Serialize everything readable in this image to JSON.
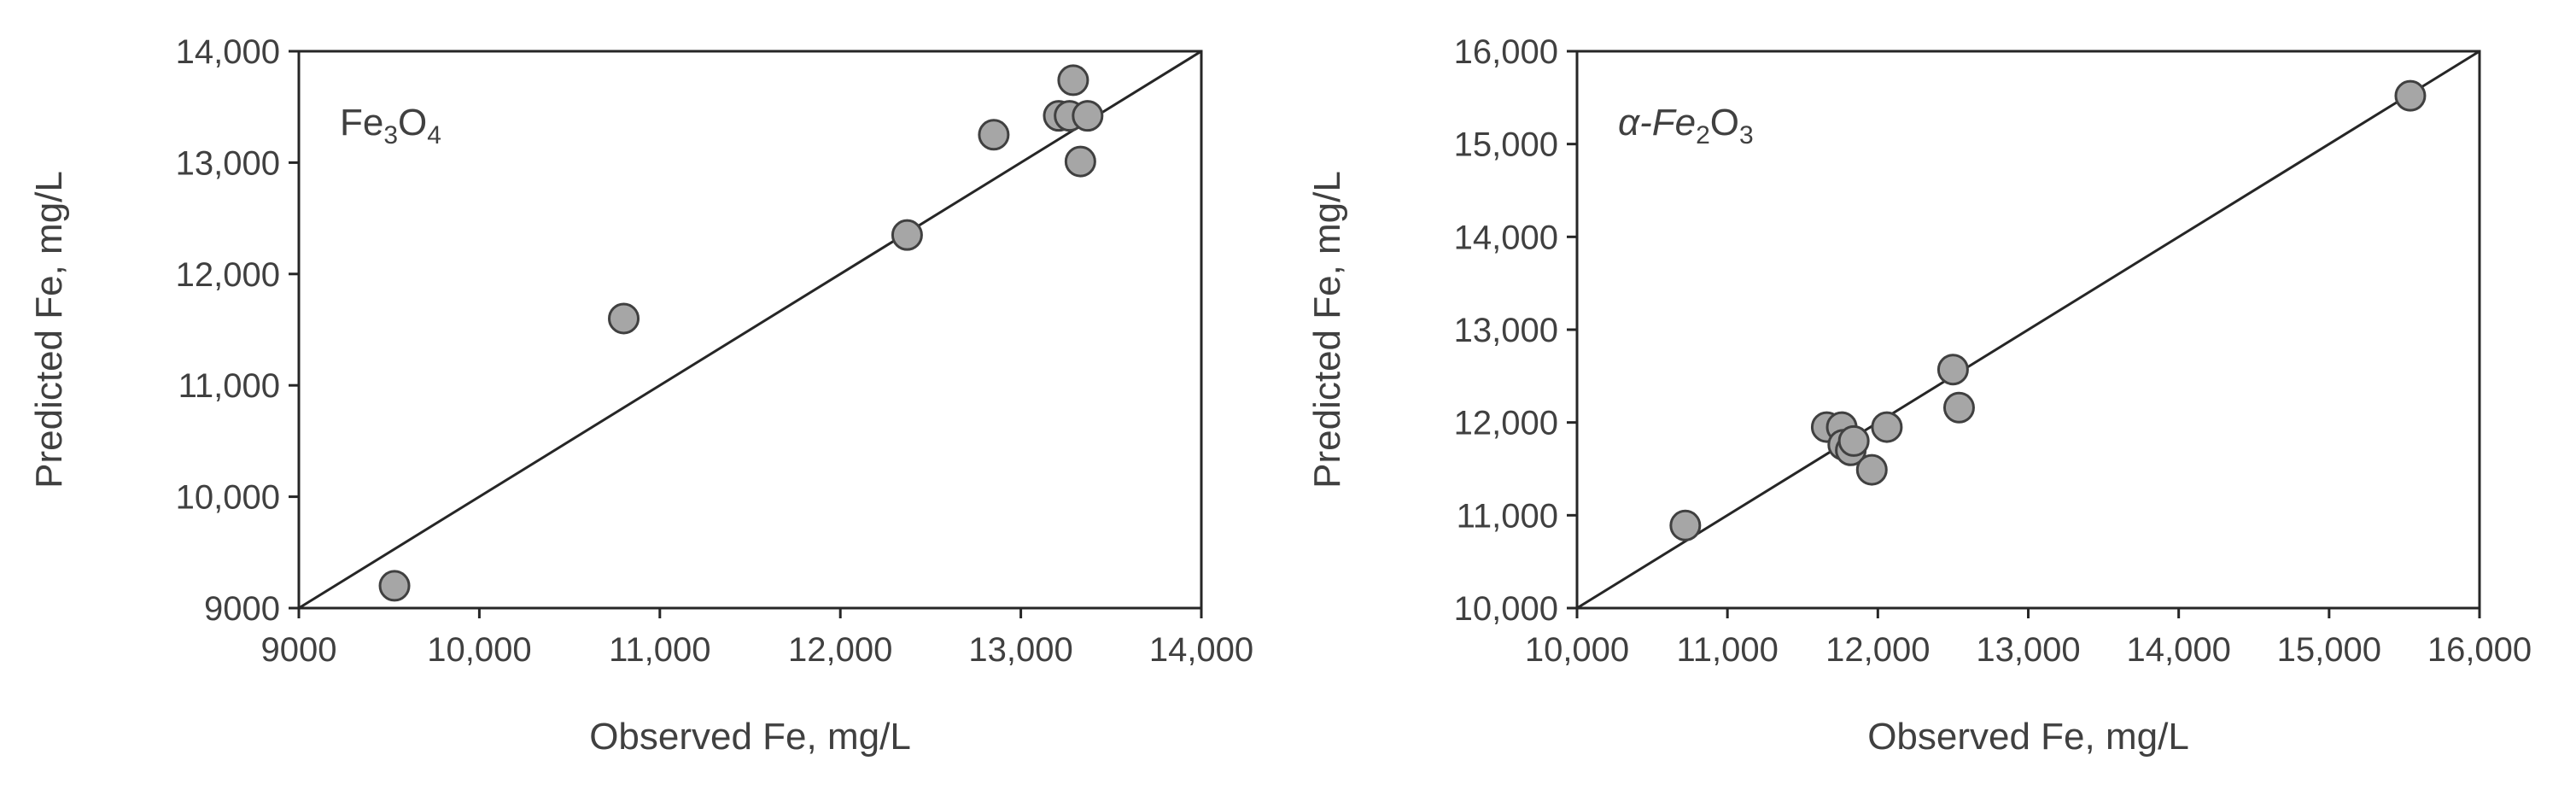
{
  "chart_data": [
    {
      "type": "scatter",
      "panel_label": {
        "prefix": "Fe",
        "sub1": "3",
        "mid": "O",
        "sub2": "4",
        "suffix": ""
      },
      "xlabel": "Observed Fe, mg/L",
      "ylabel": "Predicted Fe, mg/L",
      "xlim": [
        9000,
        14000
      ],
      "ylim": [
        9000,
        14000
      ],
      "xticks": [
        9000,
        10000,
        11000,
        12000,
        13000,
        14000
      ],
      "yticks": [
        9000,
        10000,
        11000,
        12000,
        13000,
        14000
      ],
      "xtick_labels": [
        "9000",
        "10,000",
        "11,000",
        "12,000",
        "13,000",
        "14,000"
      ],
      "ytick_labels": [
        "9000",
        "10,000",
        "11,000",
        "12,000",
        "13,000",
        "14,000"
      ],
      "reference_line": "1:1",
      "grid": false,
      "legend": false,
      "marker_color": "#a6a6a6",
      "marker_edge": "#404040",
      "points": [
        {
          "x": 9530,
          "y": 9200
        },
        {
          "x": 10800,
          "y": 11600
        },
        {
          "x": 12370,
          "y": 12350
        },
        {
          "x": 12850,
          "y": 13250
        },
        {
          "x": 13210,
          "y": 13420
        },
        {
          "x": 13270,
          "y": 13420
        },
        {
          "x": 13290,
          "y": 13740
        },
        {
          "x": 13370,
          "y": 13420
        },
        {
          "x": 13330,
          "y": 13010
        }
      ]
    },
    {
      "type": "scatter",
      "panel_label": {
        "prefix": "α-Fe",
        "sub1": "2",
        "mid": "O",
        "sub2": "3",
        "suffix": ""
      },
      "xlabel": "Observed Fe, mg/L",
      "ylabel": "Predicted Fe, mg/L",
      "xlim": [
        10000,
        16000
      ],
      "ylim": [
        10000,
        16000
      ],
      "xticks": [
        10000,
        11000,
        12000,
        13000,
        14000,
        15000,
        16000
      ],
      "yticks": [
        10000,
        11000,
        12000,
        13000,
        14000,
        15000,
        16000
      ],
      "xtick_labels": [
        "10,000",
        "11,000",
        "12,000",
        "13,000",
        "14,000",
        "15,000",
        "16,000"
      ],
      "ytick_labels": [
        "10,000",
        "11,000",
        "12,000",
        "13,000",
        "14,000",
        "15,000",
        "16,000"
      ],
      "reference_line": "1:1",
      "grid": false,
      "legend": false,
      "marker_color": "#a6a6a6",
      "marker_edge": "#404040",
      "points": [
        {
          "x": 10720,
          "y": 10890
        },
        {
          "x": 11660,
          "y": 11950
        },
        {
          "x": 11760,
          "y": 11950
        },
        {
          "x": 11770,
          "y": 11760
        },
        {
          "x": 11820,
          "y": 11700
        },
        {
          "x": 11840,
          "y": 11800
        },
        {
          "x": 11960,
          "y": 11490
        },
        {
          "x": 12060,
          "y": 11950
        },
        {
          "x": 12500,
          "y": 12570
        },
        {
          "x": 12540,
          "y": 12160
        },
        {
          "x": 15540,
          "y": 15520
        }
      ]
    }
  ]
}
